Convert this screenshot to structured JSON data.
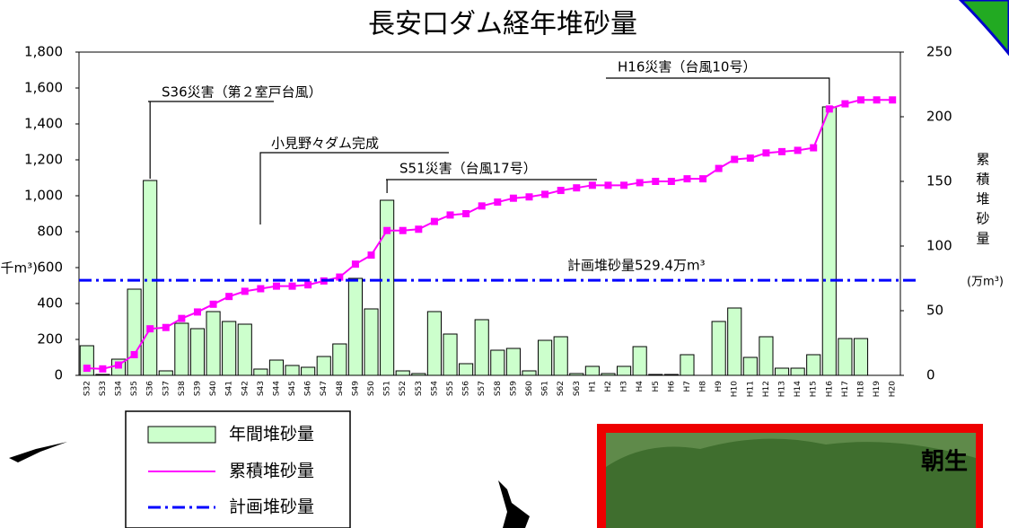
{
  "chart_data": {
    "type": "bar",
    "title": "長安口ダム経年堆砂量",
    "y_unit": "(千m³)",
    "y2_label": "累積堆砂量",
    "y2_unit": "(万m³)",
    "categories": [
      "S32",
      "S33",
      "S34",
      "S35",
      "S36",
      "S37",
      "S38",
      "S39",
      "S40",
      "S41",
      "S42",
      "S43",
      "S44",
      "S45",
      "S46",
      "S47",
      "S48",
      "S49",
      "S50",
      "S51",
      "S52",
      "S53",
      "S54",
      "S55",
      "S56",
      "S57",
      "S58",
      "S59",
      "S60",
      "S61",
      "S62",
      "S63",
      "H1",
      "H2",
      "H3",
      "H4",
      "H5",
      "H6",
      "H7",
      "H8",
      "H9",
      "H10",
      "H11",
      "H12",
      "H13",
      "H14",
      "H15",
      "H16",
      "H17",
      "H18",
      "H19",
      "H20"
    ],
    "series": [
      {
        "name": "年間堆砂量",
        "color": "#ccffcc",
        "values": [
          165,
          5,
          90,
          480,
          1085,
          25,
          290,
          260,
          355,
          300,
          285,
          35,
          85,
          55,
          45,
          105,
          175,
          540,
          370,
          975,
          25,
          10,
          355,
          230,
          65,
          310,
          140,
          150,
          25,
          195,
          215,
          10,
          50,
          10,
          50,
          160,
          5,
          5,
          115,
          0,
          300,
          375,
          100,
          215,
          40,
          40,
          115,
          1495,
          205,
          205,
          0,
          0
        ]
      },
      {
        "name": "累積堆砂量",
        "color": "#ff00ff",
        "type": "line",
        "axis": "y2",
        "values": [
          5.5,
          5,
          8,
          16,
          36,
          37,
          44,
          49,
          55,
          61,
          65,
          67,
          69,
          69,
          70,
          73,
          76,
          86,
          93,
          112,
          112,
          113,
          119,
          124,
          125,
          131,
          134,
          137,
          138,
          140,
          143,
          145,
          147,
          147,
          147,
          149,
          150,
          150,
          152,
          152,
          160,
          167,
          168,
          172,
          173,
          174,
          176,
          206,
          210,
          213,
          213,
          213
        ]
      }
    ],
    "reference_line": {
      "name": "計画堆砂量",
      "value": 529.4,
      "label": "計画堆砂量529.4万m³",
      "color": "#0000ff"
    },
    "annotations": [
      "S36災害（第２室戸台風）",
      "小見野々ダム完成",
      "S51災害（台風17号）",
      "H16災害（台風10号）"
    ],
    "ylim": [
      0,
      1800
    ],
    "yticks": [
      0,
      200,
      400,
      600,
      800,
      {
        "value": 1000,
        "label": "1,000"
      },
      {
        "value": 1200,
        "label": "1,200"
      },
      {
        "value": 1400,
        "label": "1,400"
      },
      {
        "value": 1600,
        "label": "1,600"
      },
      {
        "value": 1800,
        "label": "1,800"
      }
    ],
    "y2lim": [
      0,
      250
    ],
    "y2ticks": [
      0,
      50,
      100,
      150,
      200,
      250
    ],
    "photo_label": "朝生"
  }
}
